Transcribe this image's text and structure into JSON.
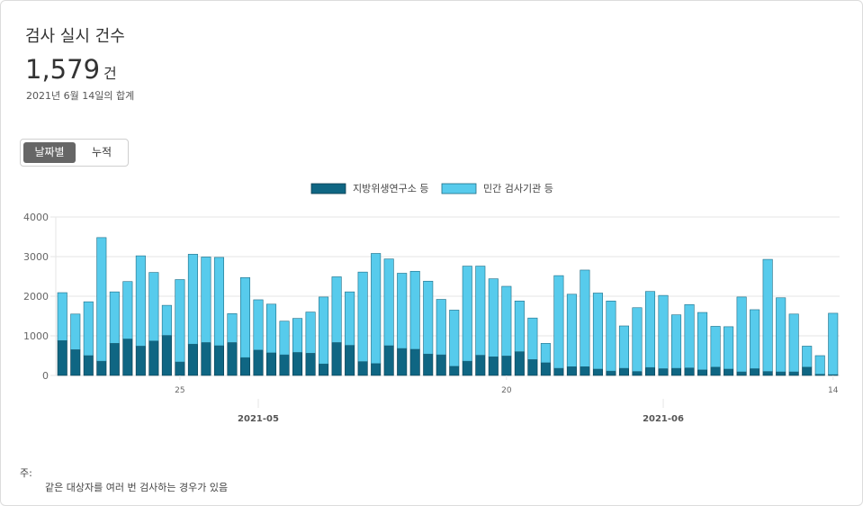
{
  "header": {
    "title": "검사 실시 건수",
    "total_value": "1,579",
    "total_unit": "건",
    "subtitle": "2021년 6월 14일의 합계"
  },
  "toggle": {
    "active_label": "날짜별",
    "inactive_label": "누적"
  },
  "notes": {
    "label": "주:",
    "line1": "같은 대상자를 여러 번 검사하는 경우가 있음"
  },
  "colors": {
    "series_local": "#0f6683",
    "series_private": "#57cbec",
    "grid": "#e6e6e6",
    "tick": "#666666"
  },
  "chart_data": {
    "type": "bar",
    "stacked": true,
    "legend_position": "top-center",
    "grid": true,
    "x_label": "",
    "y_label": "",
    "ylim": [
      0,
      4000
    ],
    "y_ticks": [
      "0",
      "1000",
      "2000",
      "3000",
      "4000"
    ],
    "x_ticks": [
      {
        "index": 9,
        "label": "25"
      },
      {
        "index": 34,
        "label": "20"
      },
      {
        "index": 59,
        "label": "14"
      }
    ],
    "month_labels": [
      {
        "index": 15.5,
        "label": "2021-05"
      },
      {
        "index": 46.5,
        "label": "2021-06"
      }
    ],
    "categories": [
      "2021-04-16",
      "2021-04-17",
      "2021-04-18",
      "2021-04-19",
      "2021-04-20",
      "2021-04-21",
      "2021-04-22",
      "2021-04-23",
      "2021-04-24",
      "2021-04-25",
      "2021-04-26",
      "2021-04-27",
      "2021-04-28",
      "2021-04-29",
      "2021-04-30",
      "2021-05-01",
      "2021-05-02",
      "2021-05-03",
      "2021-05-04",
      "2021-05-05",
      "2021-05-06",
      "2021-05-07",
      "2021-05-08",
      "2021-05-09",
      "2021-05-10",
      "2021-05-11",
      "2021-05-12",
      "2021-05-13",
      "2021-05-14",
      "2021-05-15",
      "2021-05-16",
      "2021-05-17",
      "2021-05-18",
      "2021-05-19",
      "2021-05-20",
      "2021-05-21",
      "2021-05-22",
      "2021-05-23",
      "2021-05-24",
      "2021-05-25",
      "2021-05-26",
      "2021-05-27",
      "2021-05-28",
      "2021-05-29",
      "2021-05-30",
      "2021-05-31",
      "2021-06-01",
      "2021-06-02",
      "2021-06-03",
      "2021-06-04",
      "2021-06-05",
      "2021-06-06",
      "2021-06-07",
      "2021-06-08",
      "2021-06-09",
      "2021-06-10",
      "2021-06-11",
      "2021-06-12",
      "2021-06-13",
      "2021-06-14"
    ],
    "series": [
      {
        "name": "지방위생연구소 등",
        "color": "#0f6683",
        "values": [
          880,
          650,
          500,
          360,
          810,
          920,
          740,
          870,
          1010,
          340,
          790,
          830,
          750,
          830,
          450,
          640,
          570,
          520,
          580,
          560,
          290,
          830,
          760,
          350,
          300,
          750,
          680,
          660,
          540,
          520,
          230,
          360,
          510,
          470,
          490,
          600,
          400,
          320,
          180,
          220,
          220,
          160,
          110,
          180,
          100,
          200,
          170,
          180,
          190,
          140,
          210,
          160,
          90,
          170,
          100,
          90,
          90,
          210,
          30,
          20
        ]
      },
      {
        "name": "민간 검사기관 등",
        "color": "#57cbec",
        "values": [
          1210,
          900,
          1360,
          3120,
          1300,
          1450,
          2280,
          1730,
          760,
          2080,
          2270,
          2160,
          2230,
          730,
          2020,
          1270,
          1230,
          850,
          860,
          1040,
          1690,
          1660,
          1350,
          2260,
          2780,
          2190,
          1900,
          1970,
          1840,
          1400,
          1420,
          2400,
          2250,
          1970,
          1760,
          1280,
          1050,
          490,
          2340,
          1830,
          2440,
          1920,
          1770,
          1070,
          1610,
          1920,
          1850,
          1350,
          1600,
          1450,
          1030,
          1070,
          1890,
          1490,
          2830,
          1870,
          1460,
          530,
          470,
          1550
        ]
      }
    ]
  }
}
